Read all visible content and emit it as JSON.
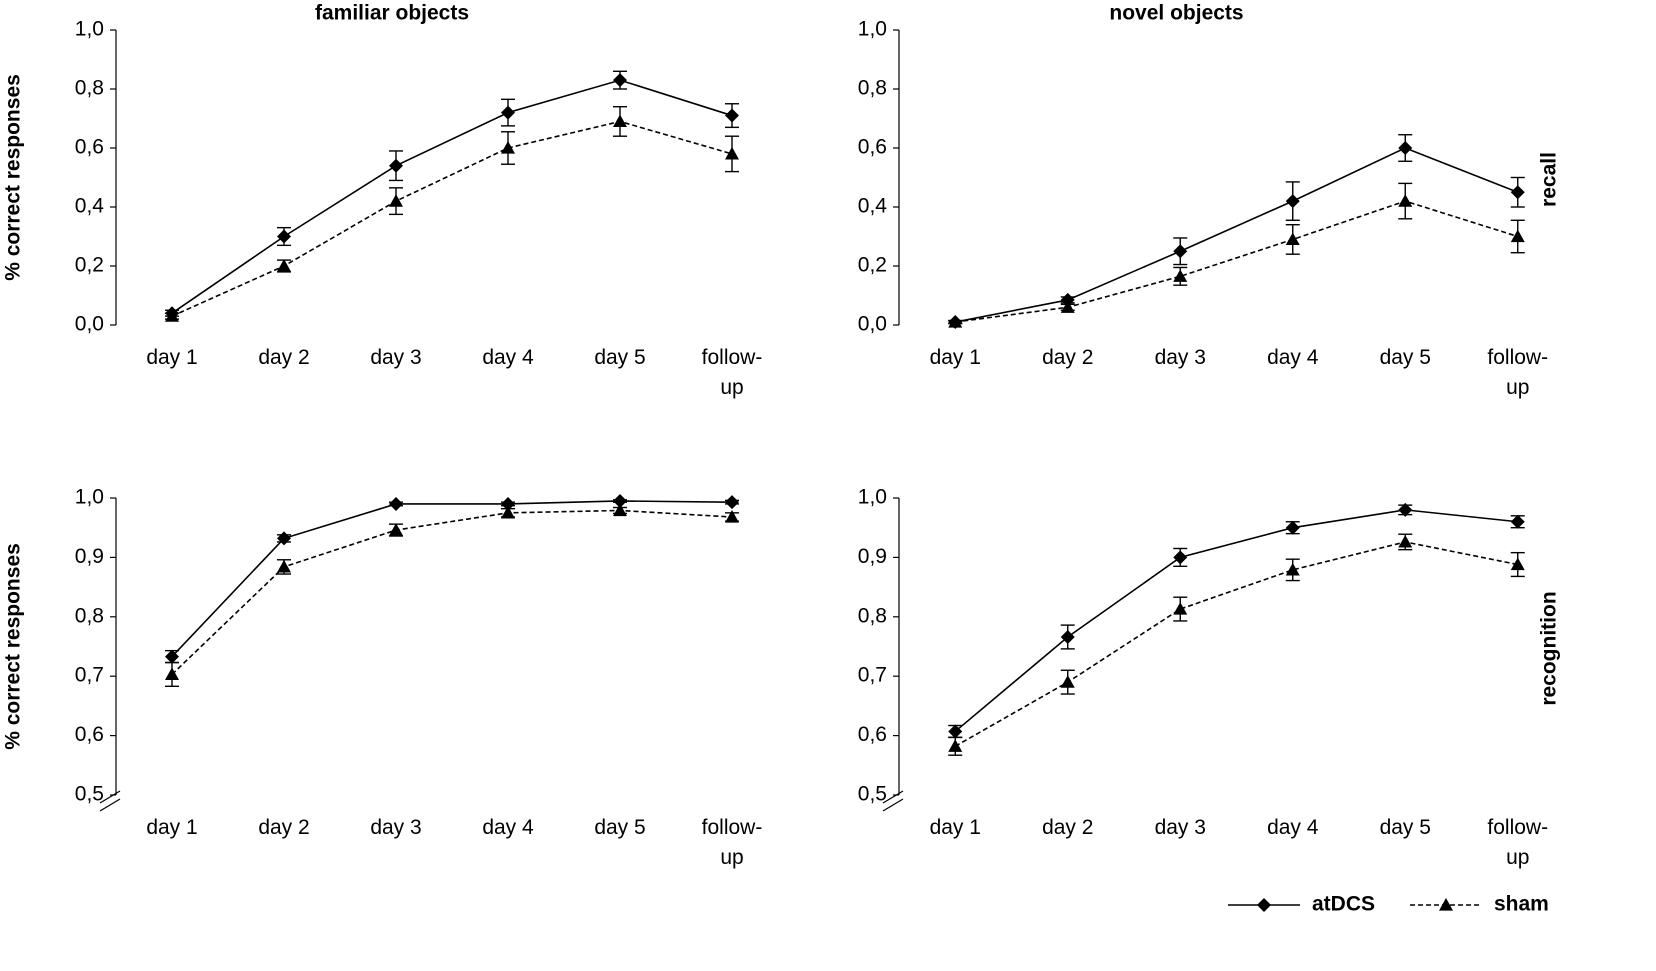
{
  "chart_data": [
    {
      "type": "line",
      "title": "familiar objects",
      "ylabel": "% correct responses",
      "categories": [
        "day 1",
        "day 2",
        "day 3",
        "day 4",
        "day 5",
        "follow-up"
      ],
      "ylim": [
        0,
        1
      ],
      "yticks": [
        {
          "value": 0,
          "label": "0,0"
        },
        {
          "value": 0.2,
          "label": "0,2"
        },
        {
          "value": 0.4,
          "label": "0,4"
        },
        {
          "value": 0.6,
          "label": "0,6"
        },
        {
          "value": 0.8,
          "label": "0,8"
        },
        {
          "value": 1,
          "label": "1,0"
        }
      ],
      "grid": false,
      "series": [
        {
          "color": "#000000",
          "dash": "solid",
          "marker": "diamond",
          "values": [
            0.04,
            0.3,
            0.54,
            0.72,
            0.83,
            0.71
          ],
          "errors": [
            0.01,
            0.03,
            0.05,
            0.045,
            0.03,
            0.04
          ]
        },
        {
          "color": "#000000",
          "dash": "dashed",
          "marker": "triangle",
          "values": [
            0.03,
            0.2,
            0.42,
            0.6,
            0.69,
            0.58
          ],
          "errors": [
            0.01,
            0.02,
            0.045,
            0.055,
            0.05,
            0.06
          ]
        }
      ]
    },
    {
      "type": "line",
      "title": "novel objects",
      "side_label": "recall",
      "categories": [
        "day 1",
        "day 2",
        "day 3",
        "day 4",
        "day 5",
        "follow-up"
      ],
      "ylim": [
        0,
        1
      ],
      "yticks": [
        {
          "value": 0,
          "label": "0,0"
        },
        {
          "value": 0.2,
          "label": "0,2"
        },
        {
          "value": 0.4,
          "label": "0,4"
        },
        {
          "value": 0.6,
          "label": "0,6"
        },
        {
          "value": 0.8,
          "label": "0,8"
        },
        {
          "value": 1,
          "label": "1,0"
        }
      ],
      "grid": false,
      "series": [
        {
          "color": "#000000",
          "dash": "solid",
          "marker": "diamond",
          "values": [
            0.01,
            0.085,
            0.25,
            0.42,
            0.6,
            0.45
          ],
          "errors": [
            0.005,
            0.01,
            0.045,
            0.065,
            0.045,
            0.05
          ]
        },
        {
          "color": "#000000",
          "dash": "dashed",
          "marker": "triangle",
          "values": [
            0.01,
            0.06,
            0.165,
            0.29,
            0.42,
            0.3
          ],
          "errors": [
            0.005,
            0.01,
            0.03,
            0.05,
            0.06,
            0.055
          ]
        }
      ]
    },
    {
      "type": "line",
      "ylabel": "% correct responses",
      "categories": [
        "day 1",
        "day 2",
        "day 3",
        "day 4",
        "day 5",
        "follow-up"
      ],
      "ylim": [
        0.5,
        1
      ],
      "yticks": [
        {
          "value": 0.5,
          "label": "0,5"
        },
        {
          "value": 0.6,
          "label": "0,6"
        },
        {
          "value": 0.7,
          "label": "0,7"
        },
        {
          "value": 0.8,
          "label": "0,8"
        },
        {
          "value": 0.9,
          "label": "0,9"
        },
        {
          "value": 1,
          "label": "1,0"
        }
      ],
      "grid": false,
      "series": [
        {
          "color": "#000000",
          "dash": "solid",
          "marker": "diamond",
          "values": [
            0.733,
            0.932,
            0.99,
            0.99,
            0.995,
            0.993
          ],
          "errors": [
            0.01,
            0.006,
            0.003,
            0.003,
            0.002,
            0.003
          ]
        },
        {
          "color": "#000000",
          "dash": "dashed",
          "marker": "triangle",
          "values": [
            0.703,
            0.884,
            0.946,
            0.975,
            0.979,
            0.968
          ],
          "errors": [
            0.02,
            0.012,
            0.01,
            0.007,
            0.005,
            0.007
          ]
        }
      ]
    },
    {
      "type": "line",
      "side_label": "recognition",
      "categories": [
        "day 1",
        "day 2",
        "day 3",
        "day 4",
        "day 5",
        "follow-up"
      ],
      "ylim": [
        0.5,
        1
      ],
      "yticks": [
        {
          "value": 0.5,
          "label": "0,5"
        },
        {
          "value": 0.6,
          "label": "0,6"
        },
        {
          "value": 0.7,
          "label": "0,7"
        },
        {
          "value": 0.8,
          "label": "0,8"
        },
        {
          "value": 0.9,
          "label": "0,9"
        },
        {
          "value": 1,
          "label": "1,0"
        }
      ],
      "grid": false,
      "series": [
        {
          "name": "atDCS",
          "color": "#000000",
          "dash": "solid",
          "marker": "diamond",
          "values": [
            0.607,
            0.766,
            0.9,
            0.95,
            0.98,
            0.96
          ],
          "errors": [
            0.01,
            0.02,
            0.015,
            0.01,
            0.008,
            0.01
          ]
        },
        {
          "name": "sham",
          "color": "#000000",
          "dash": "dashed",
          "marker": "triangle",
          "values": [
            0.582,
            0.69,
            0.813,
            0.879,
            0.926,
            0.888
          ],
          "errors": [
            0.015,
            0.02,
            0.02,
            0.018,
            0.013,
            0.02
          ]
        }
      ]
    }
  ]
}
